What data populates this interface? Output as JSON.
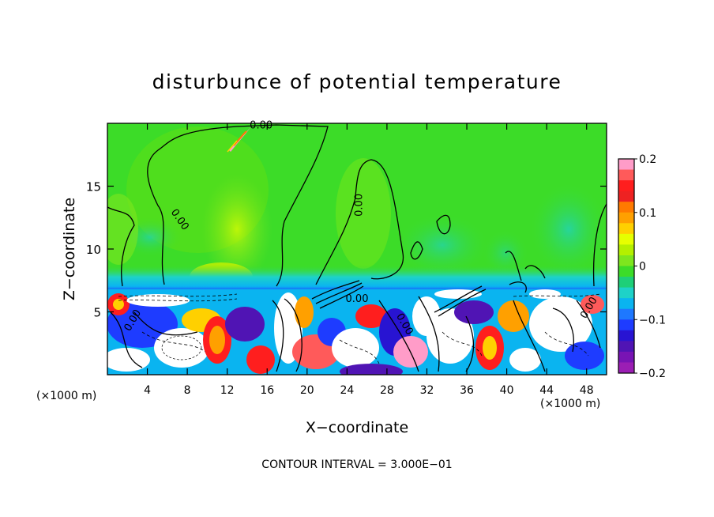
{
  "chart_data": {
    "type": "heatmap",
    "title": "disturbunce of potential temperature",
    "xlabel": "X−coordinate",
    "ylabel": "Z−coordinate",
    "x_unit_left": "(×1000 m)",
    "x_unit_right": "(×1000 m)",
    "xlim": [
      0,
      50
    ],
    "ylim": [
      0,
      20
    ],
    "x_ticks": [
      4,
      8,
      12,
      16,
      20,
      24,
      28,
      32,
      36,
      40,
      44,
      48
    ],
    "x_tick_labels": [
      "4",
      "8",
      "12",
      "16",
      "20",
      "24",
      "28",
      "32",
      "36",
      "40",
      "44",
      "48"
    ],
    "y_ticks": [
      5,
      10,
      15
    ],
    "y_tick_labels": [
      "5",
      "10",
      "15"
    ],
    "inversion_height": 6.8,
    "colorbar": {
      "min": -0.2,
      "max": 0.2,
      "ticks": [
        0.2,
        0.1,
        0,
        -0.1,
        -0.2
      ],
      "tick_labels": [
        "0.2",
        "0.1",
        "0",
        "−0.1",
        "−0.2"
      ],
      "colors": [
        "#ff9cc8",
        "#ff5a5a",
        "#ff1e1e",
        "#ee2222",
        "#ff7a00",
        "#ffa000",
        "#ffd000",
        "#e6ff00",
        "#b4f000",
        "#7ee61e",
        "#3cdc28",
        "#1ecf78",
        "#1ed2c8",
        "#0ab4f0",
        "#1e78ff",
        "#1e3cff",
        "#2814d2",
        "#5014b4",
        "#7814b4",
        "#9b1eb4"
      ]
    },
    "contour_labels": [
      {
        "text": "0.00",
        "x": 15.4,
        "y": 19.6
      },
      {
        "text": "0.00",
        "x": 7.0,
        "y": 12.2
      },
      {
        "text": "0.00",
        "x": 25.5,
        "y": 13.5
      },
      {
        "text": "0.00",
        "x": 25.0,
        "y": 5.8
      },
      {
        "text": "0.00",
        "x": 2.8,
        "y": 4.2
      },
      {
        "text": "0.00",
        "x": 29.5,
        "y": 3.9
      },
      {
        "text": "0.00",
        "x": 48.5,
        "y": 5.2
      }
    ],
    "annotation": "CONTOUR INTERVAL = 3.000E−01",
    "grid": false,
    "legend": "colorbar-right"
  }
}
